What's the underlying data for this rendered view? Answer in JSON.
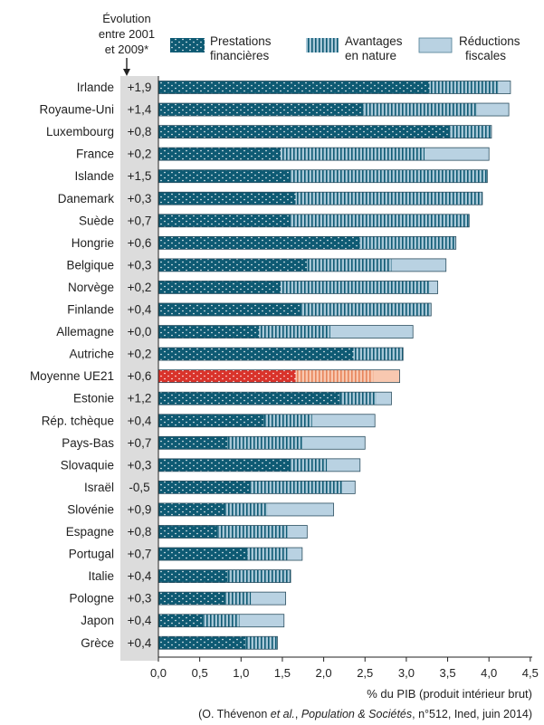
{
  "header": {
    "evolution_line1": "Évolution",
    "evolution_line2": "entre 2001",
    "evolution_line3": "et 2009*"
  },
  "legend": [
    {
      "key": "prestations",
      "line1": "Prestations",
      "line2": "financières"
    },
    {
      "key": "nature",
      "line1": "Avantages",
      "line2": "en nature"
    },
    {
      "key": "fiscal",
      "line1": "Réductions",
      "line2": "fiscales"
    }
  ],
  "colors": {
    "prestations": "#0e5a73",
    "nature_bg": "#a9c8d8",
    "nature_stripe": "#0e5a73",
    "fiscal": "#b9d2e2",
    "highlight_prestations": "#d9332b",
    "highlight_nature": "#f0a17e",
    "highlight_fiscal": "#f8c8b0",
    "label_column": "#dcdcdc"
  },
  "chart_data": {
    "type": "bar",
    "orientation": "horizontal",
    "stacked": true,
    "xlabel": "% du PIB (produit intérieur brut)",
    "xlim": [
      0,
      4.5
    ],
    "xticks": [
      "0,0",
      "0,5",
      "1,0",
      "1,5",
      "2,0",
      "2,5",
      "3,0",
      "3,5",
      "4,0",
      "4,5"
    ],
    "highlight_category": "Moyenne UE21",
    "categories": [
      "Irlande",
      "Royaume-Uni",
      "Luxembourg",
      "France",
      "Islande",
      "Danemark",
      "Suède",
      "Hongrie",
      "Belgique",
      "Norvège",
      "Finlande",
      "Allemagne",
      "Autriche",
      "Moyenne UE21",
      "Estonie",
      "Rép. tchèque",
      "Pays-Bas",
      "Slovaquie",
      "Israël",
      "Slovénie",
      "Espagne",
      "Portugal",
      "Italie",
      "Pologne",
      "Japon",
      "Grèce"
    ],
    "evolution": [
      "+1,9",
      "+1,4",
      "+0,8",
      "+0,2",
      "+1,5",
      "+0,3",
      "+0,7",
      "+0,6",
      "+0,3",
      "+0,2",
      "+0,4",
      "+0,0",
      "+0,2",
      "+0,6",
      "+1,2",
      "+0,4",
      "+0,7",
      "+0,3",
      "-0,5",
      "+0,9",
      "+0,8",
      "+0,7",
      "+0,4",
      "+0,3",
      "+0,4",
      "+0,4"
    ],
    "series": [
      {
        "name": "Prestations financières",
        "values": [
          3.28,
          2.48,
          3.53,
          1.48,
          1.6,
          1.66,
          1.6,
          2.44,
          1.8,
          1.48,
          1.72,
          1.22,
          2.36,
          1.66,
          2.2,
          1.28,
          0.84,
          1.6,
          1.12,
          0.8,
          0.72,
          1.08,
          0.84,
          0.8,
          0.54,
          1.06
        ]
      },
      {
        "name": "Avantages en nature",
        "values": [
          0.84,
          1.38,
          0.5,
          1.74,
          2.38,
          2.26,
          2.16,
          1.16,
          1.02,
          1.8,
          1.58,
          0.86,
          0.6,
          0.94,
          0.44,
          0.58,
          0.9,
          0.44,
          1.1,
          0.52,
          0.84,
          0.48,
          0.76,
          0.32,
          0.44,
          0.38
        ]
      },
      {
        "name": "Réductions fiscales",
        "values": [
          0.14,
          0.38,
          0.0,
          0.78,
          0.0,
          0.0,
          0.0,
          0.0,
          0.66,
          0.1,
          0.0,
          1.0,
          0.0,
          0.32,
          0.18,
          0.76,
          0.76,
          0.4,
          0.16,
          0.8,
          0.24,
          0.18,
          0.0,
          0.42,
          0.54,
          0.0
        ]
      }
    ]
  },
  "source": {
    "prefix": "(O. Thévenon ",
    "etal": "et al.",
    "mid": ", ",
    "journal": "Population & Sociétés",
    "suffix": ", n°512, Ined, juin 2014)"
  }
}
